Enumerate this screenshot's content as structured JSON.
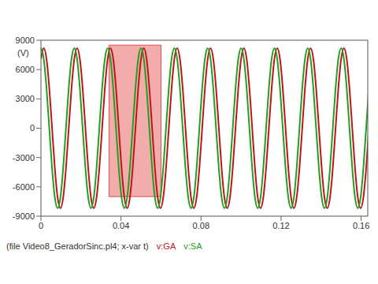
{
  "chart_data": {
    "type": "line",
    "x_label": "(file Video8_GeradorSinc.pl4; x-var t)",
    "y_label": "(V)",
    "xlim": [
      0,
      0.1633
    ],
    "xticks": [
      0,
      0.04,
      0.08,
      0.12,
      0.16
    ],
    "ylim": [
      -9000,
      9000
    ],
    "yticks": [
      -9000,
      -6000,
      -3000,
      0,
      3000,
      6000,
      9000
    ],
    "grid": false,
    "legend": "bottom",
    "highlight": {
      "x": [
        0.034,
        0.06
      ],
      "y": [
        -7000,
        8500
      ],
      "color": "#e03030"
    },
    "x": [
      0,
      0.00139,
      0.00278,
      0.00417,
      0.00556,
      0.00694,
      0.00833,
      0.00972,
      0.01111,
      0.0125,
      0.01389,
      0.01528,
      0.01667,
      0.01806,
      0.01944,
      0.02083,
      0.02222,
      0.02361,
      0.025,
      0.02639,
      0.02778,
      0.02917,
      0.03056,
      0.03194,
      0.03333,
      0.03472,
      0.03611,
      0.0375,
      0.03889,
      0.04028,
      0.04167,
      0.04306,
      0.04444,
      0.04583,
      0.04722,
      0.04861,
      0.05,
      0.05139,
      0.05278,
      0.05417,
      0.05556,
      0.05694,
      0.05833,
      0.05972,
      0.06111,
      0.0625,
      0.06389,
      0.06528,
      0.06667,
      0.06806,
      0.06944,
      0.07083,
      0.07222,
      0.07361,
      0.075,
      0.07639,
      0.07778,
      0.07917,
      0.08056,
      0.08194,
      0.08333,
      0.08472,
      0.08611,
      0.0875,
      0.08889,
      0.09028,
      0.09167,
      0.09306,
      0.09444,
      0.09583,
      0.09722,
      0.09861,
      0.1,
      0.10139,
      0.10278,
      0.10417,
      0.10556,
      0.10694,
      0.10833,
      0.10972,
      0.11111,
      0.1125,
      0.11389,
      0.11528,
      0.11667,
      0.11806,
      0.11944,
      0.12083,
      0.12222,
      0.12361,
      0.125,
      0.12639,
      0.12778,
      0.12917,
      0.13056,
      0.13194,
      0.13333,
      0.13472,
      0.13611,
      0.1375,
      0.13889,
      0.14028,
      0.14167,
      0.14306,
      0.14444,
      0.14583,
      0.14722,
      0.14861,
      0.15,
      0.15139,
      0.15278,
      0.15417,
      0.15556,
      0.15694,
      0.15833,
      0.15972,
      0.16111,
      0.1625,
      0.16389
    ],
    "series": [
      {
        "name": "v:GA",
        "color": "#c0141c",
        "values": [
          7101,
          8200,
          7101,
          4100,
          0,
          -4100,
          -7101,
          -8200,
          -7101,
          -4100,
          0,
          4100,
          7101,
          8200,
          7101,
          4100,
          0,
          -4100,
          -7101,
          -8200,
          -7101,
          -4100,
          0,
          4100,
          7101,
          8200,
          7101,
          4100,
          0,
          -4100,
          -7101,
          -8200,
          -7101,
          -4100,
          0,
          4100,
          7101,
          8200,
          7101,
          4100,
          0,
          -4100,
          -7101,
          -8200,
          -7101,
          -4100,
          0,
          4100,
          7101,
          8200,
          7101,
          4100,
          0,
          -4100,
          -7101,
          -8200,
          -7101,
          -4100,
          0,
          4100,
          7101,
          8200,
          7101,
          4100,
          0,
          -4100,
          -7101,
          -8200,
          -7101,
          -4100,
          0,
          4100,
          7101,
          8200,
          7101,
          4100,
          0,
          -4100,
          -7101,
          -8200,
          -7101,
          -4100,
          0,
          4100,
          7101,
          8200,
          7101,
          4100,
          0,
          -4100,
          -7101,
          -8200,
          -7101,
          -4100,
          0,
          4100,
          7101,
          8200,
          7101,
          4100,
          0,
          -4100,
          -7101,
          -8200,
          -7101,
          -4100,
          0,
          4100,
          7101,
          8200,
          7101,
          4100,
          0,
          -4100,
          -7101,
          -8200,
          -7101,
          -4100,
          0
        ]
      },
      {
        "name": "v:SA",
        "color": "#1fa01f",
        "values": [
          8200,
          7101,
          4100,
          0,
          -4100,
          -7101,
          -8200,
          -7101,
          -4100,
          0,
          4100,
          7101,
          8200,
          7101,
          4100,
          0,
          -4100,
          -7101,
          -8200,
          -7101,
          -4100,
          0,
          4100,
          7101,
          8200,
          7101,
          4100,
          0,
          -4100,
          -7101,
          -8200,
          -7101,
          -4100,
          0,
          4100,
          7101,
          8200,
          7101,
          4100,
          0,
          -4100,
          -7101,
          -8200,
          -7101,
          -4100,
          0,
          4100,
          7101,
          8200,
          7101,
          4100,
          0,
          -4100,
          -7101,
          -8200,
          -7101,
          -4100,
          0,
          4100,
          7101,
          8200,
          7101,
          4100,
          0,
          -4100,
          -7101,
          -8200,
          -7101,
          -4100,
          0,
          4100,
          7101,
          8200,
          7101,
          4100,
          0,
          -4100,
          -7101,
          -8200,
          -7101,
          -4100,
          0,
          4100,
          7101,
          8200,
          7101,
          4100,
          0,
          -4100,
          -7101,
          -8200,
          -7101,
          -4100,
          0,
          4100,
          7101,
          8200,
          7101,
          4100,
          0,
          -4100,
          -7101,
          -8200,
          -7101,
          -4100,
          0,
          4100,
          7101,
          8200,
          7101,
          4100,
          0,
          -4100,
          -7101,
          -8200,
          -7101,
          -4100,
          0,
          4100
        ]
      }
    ]
  }
}
